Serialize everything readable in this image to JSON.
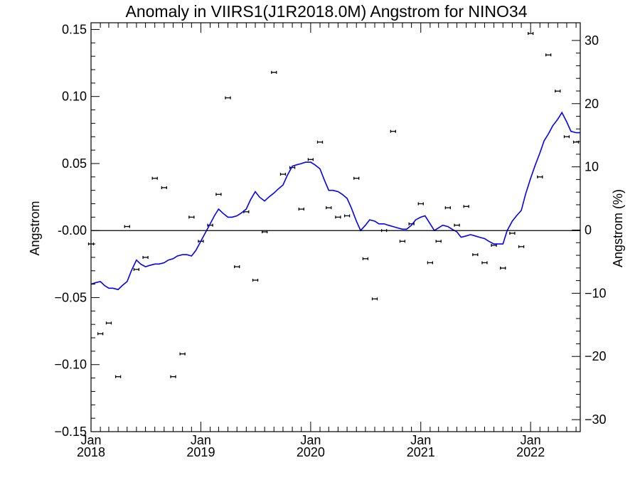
{
  "chart_data": {
    "type": "line",
    "title": "Anomaly in VIIRS1(J1R2018.0M) Angstrom for NINO34",
    "ylabel": "Angstrom",
    "y2label": "Angstrom (%)",
    "xlim": [
      "2018-01-01",
      "2022-06-15"
    ],
    "ylim": [
      -0.15,
      0.155
    ],
    "y2lim": [
      -31.9,
      32.8
    ],
    "grid": false,
    "x_ticks": [
      {
        "date": "2018-01-01",
        "lines": [
          "Jan",
          "2018"
        ]
      },
      {
        "date": "2019-01-01",
        "lines": [
          "Jan",
          "2019"
        ]
      },
      {
        "date": "2020-01-01",
        "lines": [
          "Jan",
          "2020"
        ]
      },
      {
        "date": "2021-01-01",
        "lines": [
          "Jan",
          "2021"
        ]
      },
      {
        "date": "2022-01-01",
        "lines": [
          "Jan",
          "2022"
        ]
      }
    ],
    "y_ticks": [
      {
        "value": 0.15,
        "label": "0.15"
      },
      {
        "value": 0.1,
        "label": "0.10"
      },
      {
        "value": 0.05,
        "label": "0.05"
      },
      {
        "value": 0.0,
        "label": "-0.00"
      },
      {
        "value": -0.05,
        "label": "−0.05"
      },
      {
        "value": -0.1,
        "label": "−0.10"
      },
      {
        "value": -0.15,
        "label": "−0.15"
      }
    ],
    "y2_ticks": [
      {
        "value": 30,
        "label": "30"
      },
      {
        "value": 20,
        "label": "20"
      },
      {
        "value": 10,
        "label": "10"
      },
      {
        "value": 0,
        "label": "0"
      },
      {
        "value": -10,
        "label": "−10"
      },
      {
        "value": -20,
        "label": "−20"
      },
      {
        "value": -30,
        "label": "−30"
      }
    ],
    "colors": {
      "line": "#0000ff",
      "points": "#000000",
      "zero_line": "#000000"
    },
    "series": [
      {
        "kind": "line",
        "axis": "left",
        "x": [
          "2018-01-01",
          "2018-01-15",
          "2018-02-01",
          "2018-02-15",
          "2018-03-01",
          "2018-03-15",
          "2018-04-01",
          "2018-04-15",
          "2018-05-01",
          "2018-05-15",
          "2018-06-01",
          "2018-06-15",
          "2018-07-01",
          "2018-07-15",
          "2018-08-01",
          "2018-08-15",
          "2018-09-01",
          "2018-09-15",
          "2018-10-01",
          "2018-10-15",
          "2018-11-01",
          "2018-11-15",
          "2018-12-01",
          "2018-12-15",
          "2019-01-01",
          "2019-01-15",
          "2019-02-01",
          "2019-02-15",
          "2019-03-01",
          "2019-03-15",
          "2019-04-01",
          "2019-04-15",
          "2019-05-01",
          "2019-05-15",
          "2019-06-01",
          "2019-06-15",
          "2019-07-01",
          "2019-07-15",
          "2019-08-01",
          "2019-08-15",
          "2019-09-01",
          "2019-09-15",
          "2019-10-01",
          "2019-10-15",
          "2019-11-01",
          "2019-11-15",
          "2019-12-01",
          "2019-12-15",
          "2020-01-01",
          "2020-01-15",
          "2020-02-01",
          "2020-02-15",
          "2020-03-01",
          "2020-03-15",
          "2020-04-01",
          "2020-04-15",
          "2020-05-01",
          "2020-05-15",
          "2020-06-01",
          "2020-06-15",
          "2020-07-01",
          "2020-07-15",
          "2020-08-01",
          "2020-08-15",
          "2020-09-01",
          "2020-09-15",
          "2020-10-01",
          "2020-10-15",
          "2020-11-01",
          "2020-11-15",
          "2020-12-01",
          "2020-12-15",
          "2021-01-01",
          "2021-01-15",
          "2021-02-01",
          "2021-02-15",
          "2021-03-01",
          "2021-03-15",
          "2021-04-01",
          "2021-04-15",
          "2021-05-01",
          "2021-05-15",
          "2021-06-01",
          "2021-06-15",
          "2021-07-01",
          "2021-07-15",
          "2021-08-01",
          "2021-08-15",
          "2021-09-01",
          "2021-09-15",
          "2021-10-01",
          "2021-10-15",
          "2021-11-01",
          "2021-11-15",
          "2021-12-01",
          "2021-12-15",
          "2022-01-01",
          "2022-01-15",
          "2022-02-01",
          "2022-02-15",
          "2022-03-01",
          "2022-03-15",
          "2022-04-01",
          "2022-04-15",
          "2022-05-01",
          "2022-05-15",
          "2022-06-01",
          "2022-06-15"
        ],
        "values": [
          -0.04,
          -0.039,
          -0.038,
          -0.041,
          -0.043,
          -0.043,
          -0.044,
          -0.041,
          -0.038,
          -0.03,
          -0.022,
          -0.025,
          -0.027,
          -0.026,
          -0.025,
          -0.025,
          -0.024,
          -0.022,
          -0.021,
          -0.019,
          -0.018,
          -0.018,
          -0.019,
          -0.015,
          -0.008,
          -0.002,
          0.005,
          0.011,
          0.016,
          0.013,
          0.01,
          0.01,
          0.011,
          0.013,
          0.016,
          0.023,
          0.029,
          0.025,
          0.022,
          0.025,
          0.028,
          0.031,
          0.034,
          0.041,
          0.048,
          0.049,
          0.05,
          0.051,
          0.051,
          0.049,
          0.046,
          0.038,
          0.03,
          0.03,
          0.029,
          0.027,
          0.024,
          0.017,
          0.007,
          0.0,
          0.004,
          0.008,
          0.007,
          0.005,
          0.005,
          0.004,
          0.003,
          0.002,
          0.001,
          0.001,
          0.004,
          0.008,
          0.01,
          0.011,
          0.005,
          0.0,
          0.002,
          0.004,
          0.003,
          0.001,
          -0.001,
          -0.005,
          -0.004,
          -0.003,
          -0.004,
          -0.005,
          -0.006,
          -0.008,
          -0.01,
          -0.01,
          -0.01,
          0.0,
          0.007,
          0.011,
          0.015,
          0.027,
          0.039,
          0.048,
          0.058,
          0.067,
          0.072,
          0.078,
          0.083,
          0.088,
          0.081,
          0.074,
          0.073,
          0.073
        ]
      },
      {
        "kind": "errorbar_points",
        "axis": "left",
        "x": [
          "2018-01-01",
          "2018-02-01",
          "2018-03-01",
          "2018-04-01",
          "2018-05-01",
          "2018-06-01",
          "2018-07-01",
          "2018-08-01",
          "2018-09-01",
          "2018-10-01",
          "2018-11-01",
          "2018-12-01",
          "2019-01-01",
          "2019-02-01",
          "2019-03-01",
          "2019-04-01",
          "2019-05-01",
          "2019-06-01",
          "2019-07-01",
          "2019-08-01",
          "2019-09-01",
          "2019-10-01",
          "2019-11-01",
          "2019-12-01",
          "2020-01-01",
          "2020-02-01",
          "2020-03-01",
          "2020-04-01",
          "2020-05-01",
          "2020-06-01",
          "2020-07-01",
          "2020-08-01",
          "2020-09-01",
          "2020-10-01",
          "2020-11-01",
          "2020-12-01",
          "2021-01-01",
          "2021-02-01",
          "2021-03-01",
          "2021-04-01",
          "2021-05-01",
          "2021-06-01",
          "2021-07-01",
          "2021-08-01",
          "2021-09-01",
          "2021-10-01",
          "2021-11-01",
          "2021-12-01",
          "2022-01-01",
          "2022-02-01",
          "2022-03-01",
          "2022-04-01",
          "2022-05-01",
          "2022-06-01"
        ],
        "values": [
          -0.01,
          -0.077,
          -0.069,
          -0.109,
          0.003,
          -0.029,
          -0.02,
          0.039,
          0.032,
          -0.109,
          -0.092,
          0.01,
          -0.008,
          0.004,
          0.027,
          0.099,
          -0.027,
          0.014,
          -0.037,
          -0.001,
          0.118,
          0.042,
          0.047,
          0.016,
          0.053,
          0.066,
          0.017,
          0.01,
          0.011,
          0.039,
          -0.021,
          -0.051,
          0.0,
          0.074,
          -0.008,
          0.005,
          0.02,
          -0.024,
          -0.008,
          0.017,
          0.004,
          0.018,
          -0.018,
          -0.024,
          -0.011,
          -0.028,
          -0.002,
          -0.012,
          0.147,
          0.04,
          0.131,
          0.104,
          0.07,
          0.066
        ],
        "error": 0.001
      }
    ]
  }
}
